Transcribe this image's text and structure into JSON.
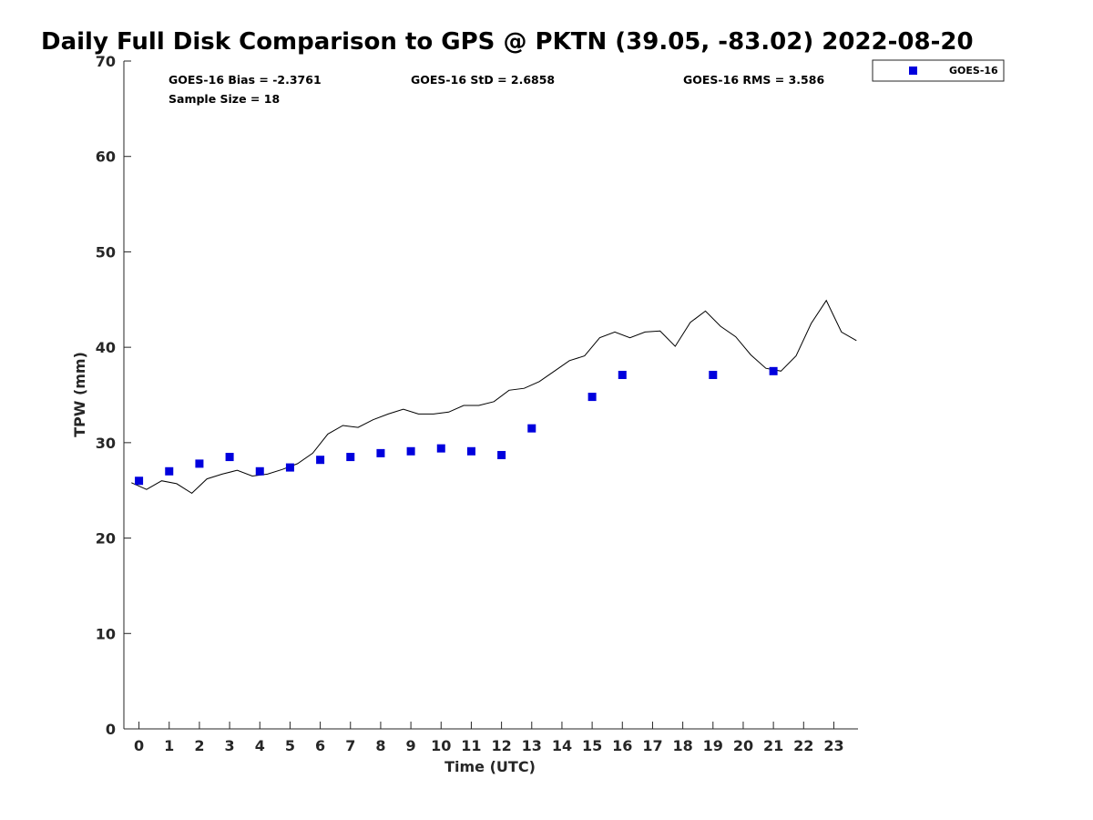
{
  "chart_data": {
    "type": "scatter",
    "title": "Daily Full Disk Comparison to GPS @ PKTN (39.05, -83.02) 2022-08-20",
    "xlabel": "Time (UTC)",
    "ylabel": "TPW (mm)",
    "xlim": [
      -0.5,
      23.8
    ],
    "ylim": [
      0,
      70
    ],
    "x_ticks": [
      0,
      1,
      2,
      3,
      4,
      5,
      6,
      7,
      8,
      9,
      10,
      11,
      12,
      13,
      14,
      15,
      16,
      17,
      18,
      19,
      20,
      21,
      22,
      23
    ],
    "y_ticks": [
      0,
      10,
      20,
      30,
      40,
      50,
      60,
      70
    ],
    "grid": false,
    "legend_position": "top-right",
    "series": [
      {
        "name": "GOES-16",
        "kind": "scatter",
        "color": "#0000dd",
        "marker": "square",
        "x": [
          0,
          1,
          2,
          3,
          4,
          5,
          6,
          7,
          8,
          9,
          10,
          11,
          12,
          13,
          15,
          16,
          19,
          21
        ],
        "y": [
          26.0,
          27.0,
          27.8,
          28.5,
          27.0,
          27.4,
          28.2,
          28.5,
          28.9,
          29.1,
          29.4,
          29.1,
          28.7,
          31.5,
          34.8,
          37.1,
          37.1,
          37.5
        ]
      },
      {
        "kind": "line",
        "color": "#000000",
        "x": [
          -0.25,
          0.25,
          0.75,
          1.25,
          1.75,
          2.25,
          2.75,
          3.25,
          3.75,
          4.25,
          4.75,
          5.25,
          5.75,
          6.25,
          6.75,
          7.25,
          7.75,
          8.25,
          8.75,
          9.25,
          9.75,
          10.25,
          10.75,
          11.25,
          11.75,
          12.25,
          12.75,
          13.25,
          13.75,
          14.25,
          14.75,
          15.25,
          15.75,
          16.25,
          16.75,
          17.25,
          17.75,
          18.25,
          18.75,
          19.25,
          19.75,
          20.25,
          20.75,
          21.25,
          21.75,
          22.25,
          22.75,
          23.25,
          23.75
        ],
        "y": [
          25.8,
          25.1,
          26.0,
          25.7,
          24.7,
          26.2,
          26.7,
          27.1,
          26.5,
          26.7,
          27.2,
          27.8,
          28.9,
          30.9,
          31.8,
          31.6,
          32.4,
          33.0,
          33.5,
          33.0,
          33.0,
          33.2,
          33.9,
          33.9,
          34.3,
          35.5,
          35.7,
          36.4,
          37.5,
          38.6,
          39.1,
          41.0,
          41.6,
          41.0,
          41.6,
          41.7,
          40.1,
          42.6,
          43.8,
          42.2,
          41.1,
          39.2,
          37.8,
          37.5,
          39.1,
          42.5,
          44.9,
          41.6,
          40.7
        ]
      }
    ],
    "stats": {
      "bias": "GOES-16 Bias = -2.3761",
      "std": "GOES-16 StD = 2.6858",
      "rms": "GOES-16 RMS = 3.586",
      "sample": "Sample Size = 18"
    }
  }
}
